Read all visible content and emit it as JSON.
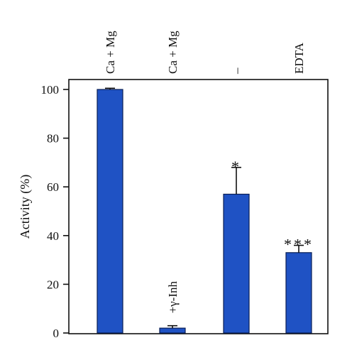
{
  "chart_data": {
    "type": "bar",
    "categories": [
      "Ca + Mg",
      "Ca + Mg",
      "–",
      "EDTA"
    ],
    "values": [
      100,
      2,
      57,
      33
    ],
    "errors": [
      0.5,
      1,
      11,
      3
    ],
    "annotations": [
      "",
      "+γ-Inh",
      "*",
      "***"
    ],
    "ylabel": "Activity (%)",
    "yticks": [
      0,
      20,
      40,
      60,
      80,
      100
    ],
    "ylim": [
      0,
      100
    ],
    "bar_color": "#1f52c4",
    "grid": false
  }
}
